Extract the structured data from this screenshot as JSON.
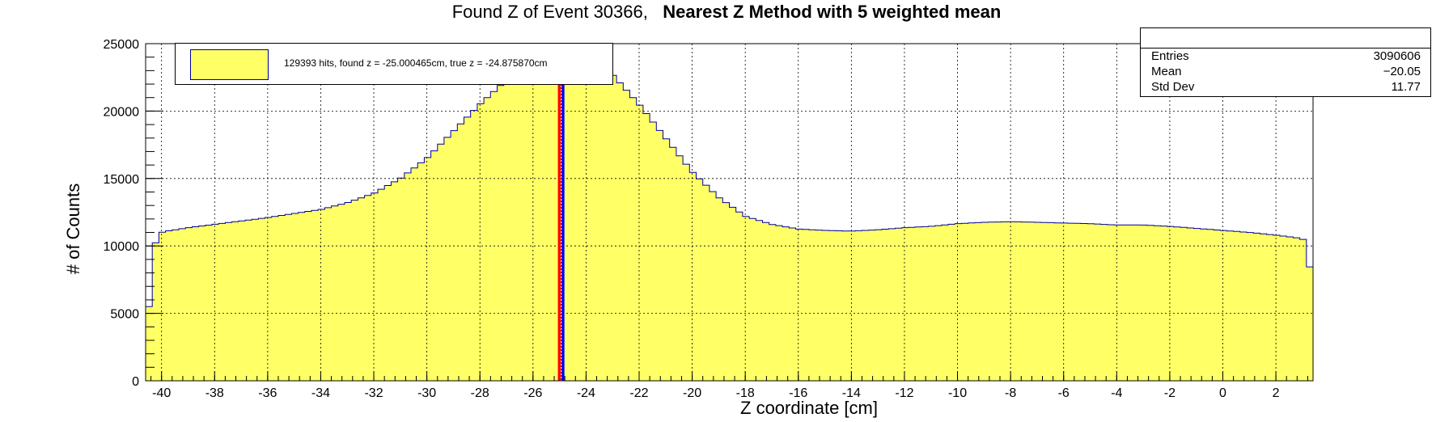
{
  "title": {
    "main": "Found Z of Event 30366,",
    "bold": "Nearest Z Method with 5 weighted mean"
  },
  "stats": {
    "entries_label": "Entries",
    "entries": "3090606",
    "mean_label": "Mean",
    "mean": "−20.05",
    "std_label": "Std Dev",
    "std": "11.77"
  },
  "legend": {
    "label": "129393 hits, found z = -25.000465cm, true z = -24.875870cm"
  },
  "colors": {
    "fill": "#ffff66",
    "line": "#000099",
    "found": "#ff0000",
    "true": "#0000ff"
  },
  "chart_data": {
    "type": "histogram",
    "xlabel": "Z coordinate [cm]",
    "ylabel": "# of Counts",
    "xlim": [
      -40.6,
      3.4
    ],
    "ylim": [
      0,
      25000
    ],
    "xticks": [
      -40,
      -38,
      -36,
      -34,
      -32,
      -30,
      -28,
      -26,
      -24,
      -22,
      -20,
      -18,
      -16,
      -14,
      -12,
      -10,
      -8,
      -6,
      -4,
      -2,
      0,
      2
    ],
    "yticks": [
      0,
      5000,
      10000,
      15000,
      20000,
      25000
    ],
    "grid": true,
    "found_z": -25.000465,
    "true_z": -24.87587,
    "profile": [
      [
        -40.4,
        5500
      ],
      [
        -40.2,
        10900
      ],
      [
        -39.8,
        11100
      ],
      [
        -39,
        11350
      ],
      [
        -38,
        11600
      ],
      [
        -37,
        11850
      ],
      [
        -36,
        12100
      ],
      [
        -35,
        12400
      ],
      [
        -34,
        12700
      ],
      [
        -33,
        13200
      ],
      [
        -32,
        13900
      ],
      [
        -31,
        15000
      ],
      [
        -30,
        16500
      ],
      [
        -29,
        18500
      ],
      [
        -28,
        20500
      ],
      [
        -27,
        22300
      ],
      [
        -26.4,
        23800
      ],
      [
        -25.4,
        25000
      ],
      [
        -24.4,
        25000
      ],
      [
        -23.4,
        23500
      ],
      [
        -23,
        22700
      ],
      [
        -22,
        20500
      ],
      [
        -21,
        18000
      ],
      [
        -20,
        15500
      ],
      [
        -19,
        13600
      ],
      [
        -18,
        12200
      ],
      [
        -17,
        11600
      ],
      [
        -16,
        11250
      ],
      [
        -15,
        11150
      ],
      [
        -14,
        11100
      ],
      [
        -13,
        11200
      ],
      [
        -12,
        11350
      ],
      [
        -11,
        11450
      ],
      [
        -10,
        11650
      ],
      [
        -9,
        11750
      ],
      [
        -8,
        11800
      ],
      [
        -7,
        11750
      ],
      [
        -6,
        11700
      ],
      [
        -5,
        11650
      ],
      [
        -4,
        11550
      ],
      [
        -3,
        11550
      ],
      [
        -2,
        11450
      ],
      [
        -1,
        11300
      ],
      [
        0,
        11150
      ],
      [
        1,
        11000
      ],
      [
        2,
        10800
      ],
      [
        2.8,
        10600
      ],
      [
        3.2,
        10400
      ],
      [
        3.4,
        5200
      ]
    ]
  }
}
